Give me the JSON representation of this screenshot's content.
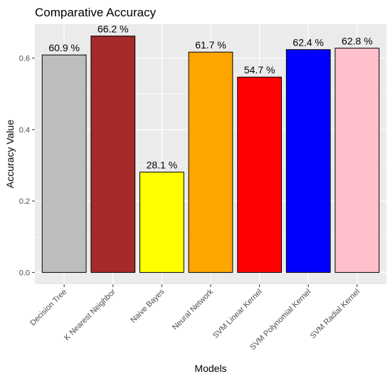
{
  "chart_data": {
    "type": "bar",
    "title": "Comparative Accuracy",
    "xlabel": "Models",
    "ylabel": "Accuracy Value",
    "categories": [
      "Decision Tree",
      "K Nearest Neighbor",
      "Naive Bayes",
      "Neural Network",
      "SVM Linear Kernel",
      "SVM Polynomial Kernel",
      "SVM Radial Kernel"
    ],
    "values": [
      0.609,
      0.662,
      0.281,
      0.617,
      0.547,
      0.624,
      0.628
    ],
    "data_labels": [
      "60.9 %",
      "66.2 %",
      "28.1 %",
      "61.7 %",
      "54.7 %",
      "62.4 %",
      "62.8 %"
    ],
    "bar_colors": [
      "#bebebe",
      "#a52a2a",
      "#ffff00",
      "#ffa500",
      "#ff0000",
      "#0000ff",
      "#ffc0cb"
    ],
    "ylim": [
      -0.0331,
      0.6951
    ],
    "yticks": [
      0.0,
      0.2,
      0.4,
      0.6
    ],
    "ytick_labels": [
      "0.0",
      "0.2",
      "0.4",
      "0.6"
    ],
    "grid": true,
    "legend": "none",
    "panel_background": "#ebebeb",
    "grid_color": "#ffffff"
  }
}
